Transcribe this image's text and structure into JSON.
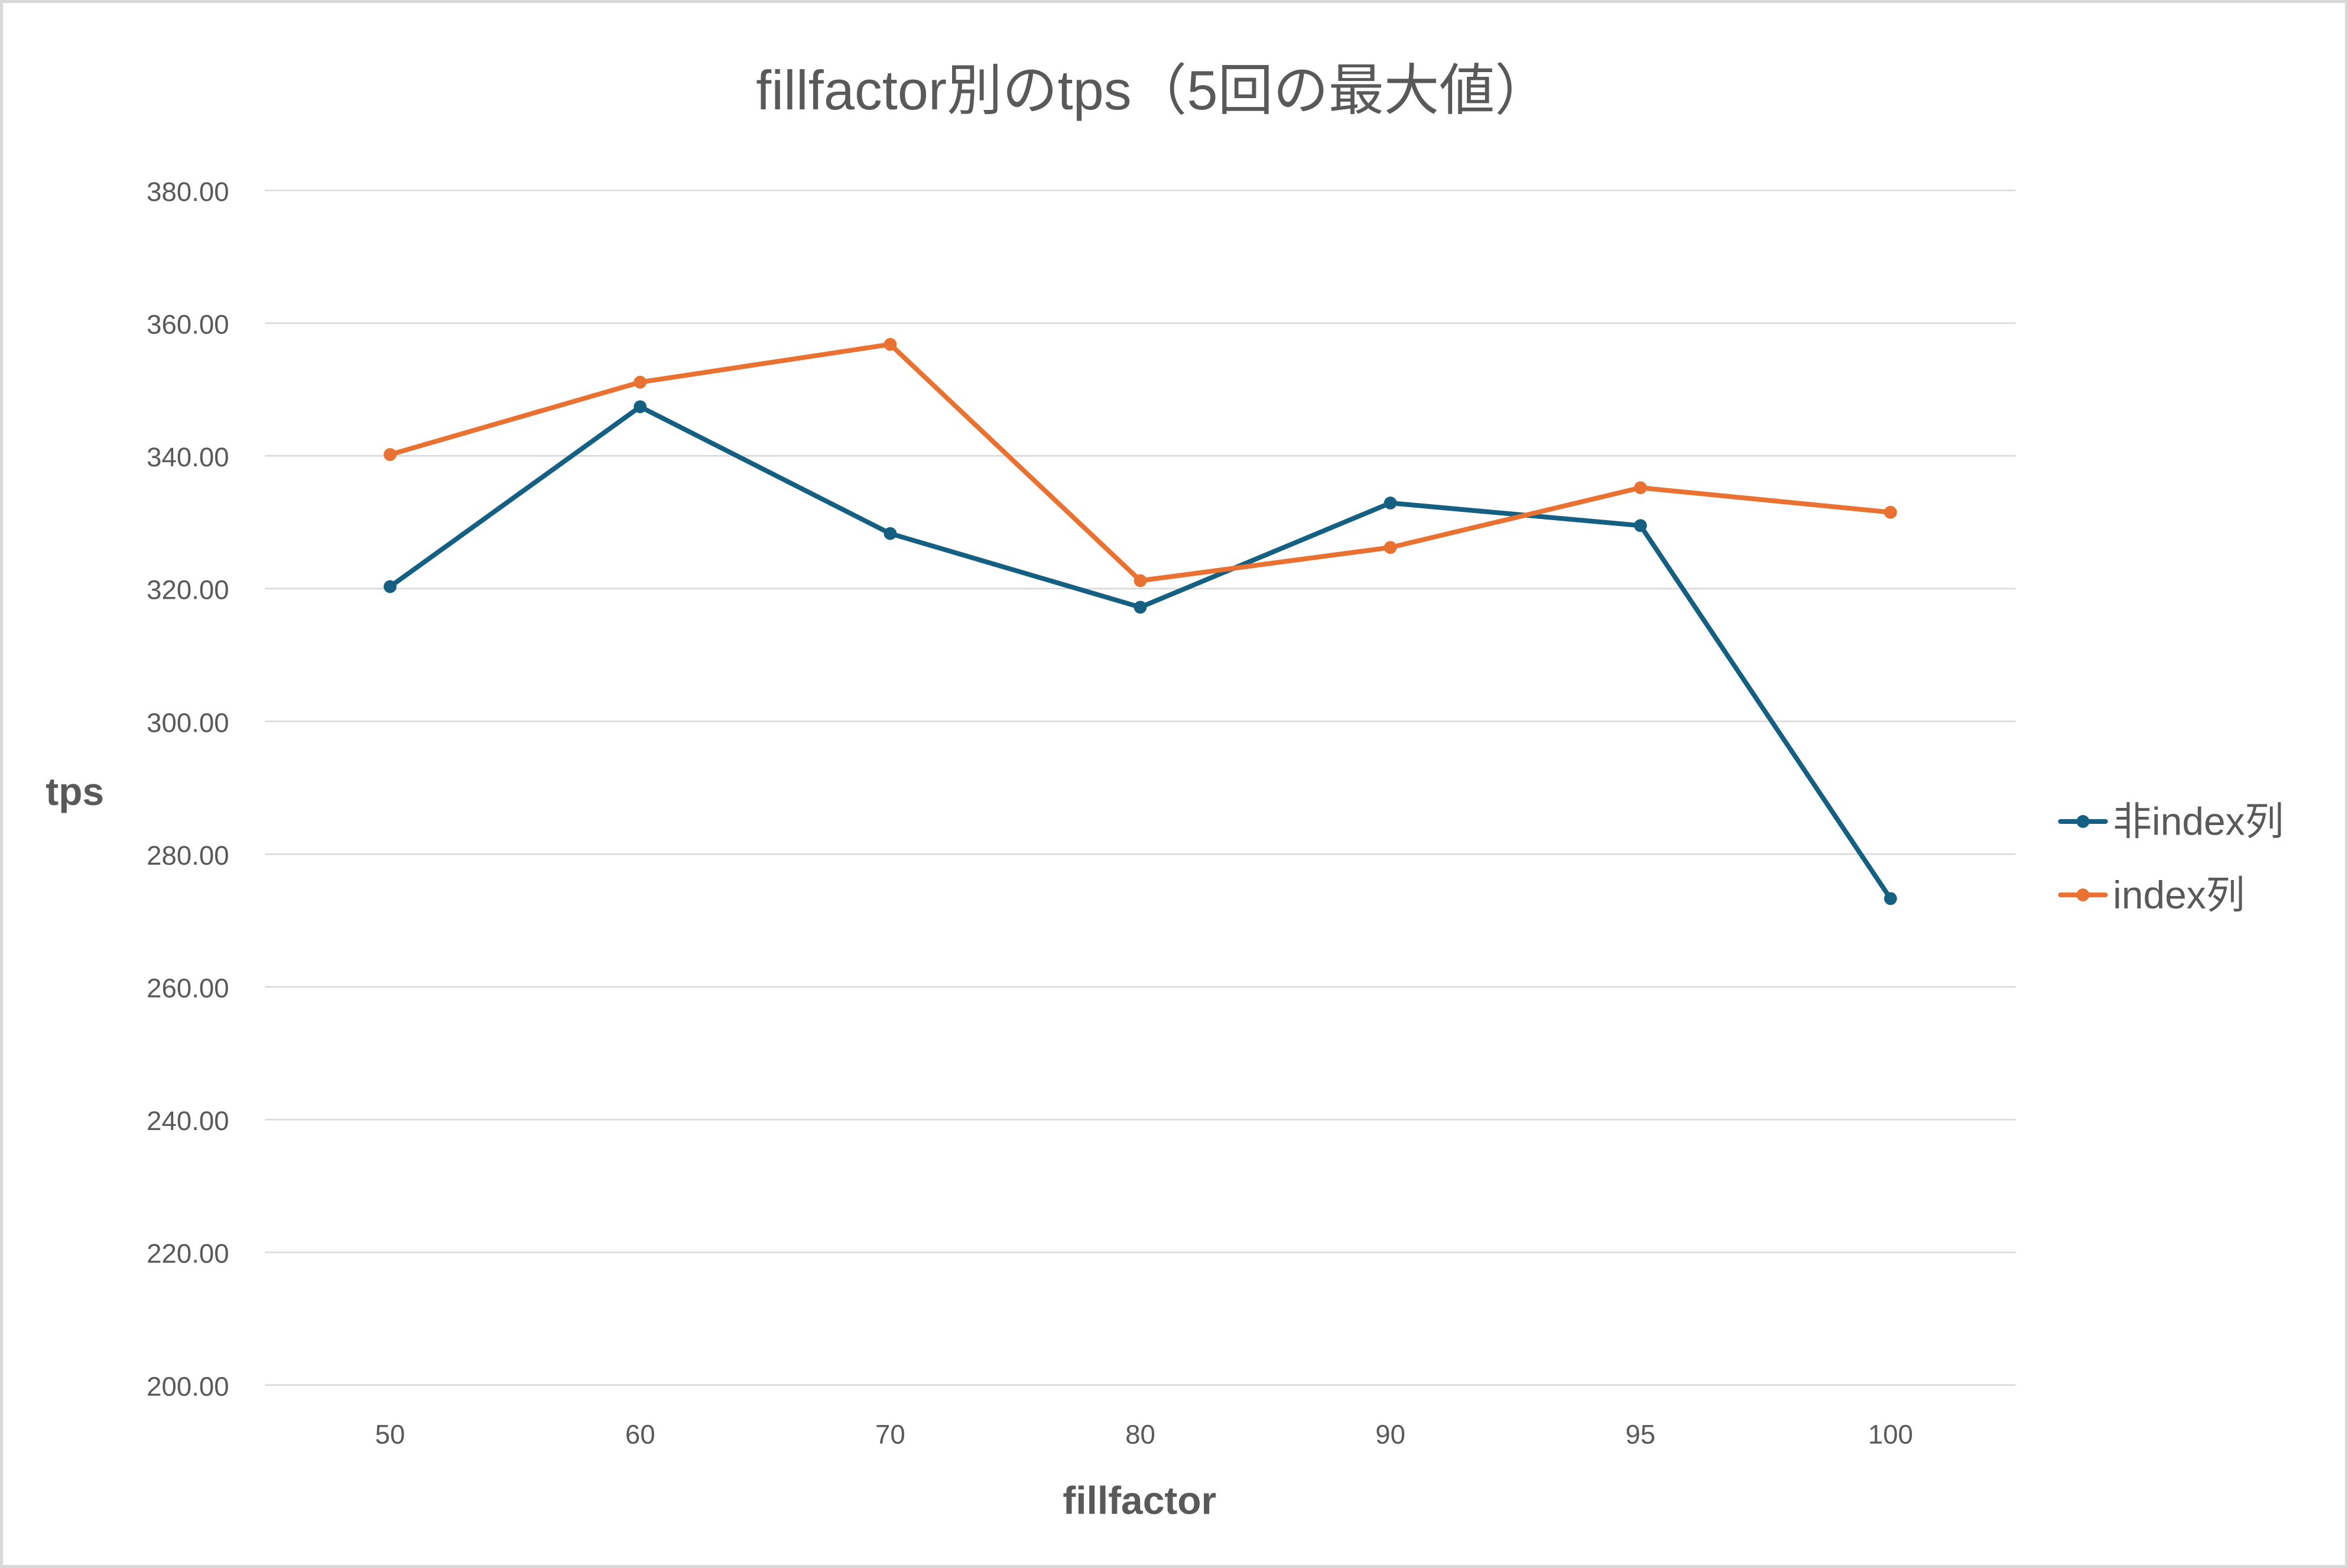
{
  "chart_data": {
    "type": "line",
    "title": "fillfactor別のtps（5回の最大値）",
    "xlabel": "fillfactor",
    "ylabel": "tps",
    "categories": [
      "50",
      "60",
      "70",
      "80",
      "90",
      "95",
      "100"
    ],
    "series": [
      {
        "name": "非index列",
        "color": "#156082",
        "values": [
          320.3,
          347.4,
          328.3,
          317.2,
          332.9,
          329.5,
          273.3
        ]
      },
      {
        "name": "index列",
        "color": "#E97132",
        "values": [
          340.2,
          351.1,
          356.8,
          321.2,
          326.2,
          335.2,
          331.5
        ]
      }
    ],
    "ylim": [
      200,
      380
    ],
    "yticks": [
      "200.00",
      "220.00",
      "240.00",
      "260.00",
      "280.00",
      "300.00",
      "320.00",
      "340.00",
      "360.00",
      "380.00"
    ],
    "grid": true,
    "legend_position": "right",
    "markers": true
  },
  "colors": {
    "text": "#595959",
    "grid": "#D9D9D9",
    "border": "#D9D9D9",
    "background": "#FFFFFF"
  }
}
